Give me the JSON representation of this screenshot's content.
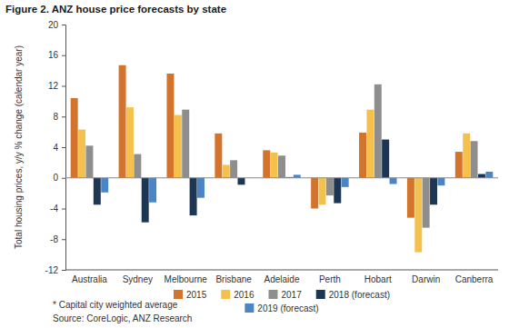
{
  "chart_data": {
    "type": "bar",
    "title": "Figure 2. ANZ house price forecasts by state",
    "y_label": "Total housing prices, y/y % change (calendar year)",
    "categories": [
      "Australia",
      "Sydney",
      "Melbourne",
      "Brisbane",
      "Adelaide",
      "Perth",
      "Hobart",
      "Darwin",
      "Canberra"
    ],
    "series": [
      {
        "name": "2015",
        "color": "#d4732c",
        "values": [
          10.4,
          14.7,
          13.6,
          5.8,
          3.6,
          -4.0,
          5.9,
          -5.2,
          3.4
        ]
      },
      {
        "name": "2016",
        "color": "#f4c14d",
        "values": [
          6.3,
          9.2,
          8.2,
          1.7,
          3.3,
          -3.5,
          8.9,
          -9.7,
          5.8
        ]
      },
      {
        "name": "2017",
        "color": "#8e8e8e",
        "values": [
          4.2,
          3.1,
          8.9,
          2.3,
          2.9,
          -2.3,
          12.2,
          -6.5,
          4.8
        ]
      },
      {
        "name": "2018 (forecast)",
        "color": "#1c3654",
        "values": [
          -3.5,
          -5.8,
          -4.9,
          -0.9,
          0.1,
          -3.3,
          5.0,
          -3.5,
          0.5
        ]
      },
      {
        "name": "2019 (forecast)",
        "color": "#4a86c5",
        "values": [
          -1.9,
          -3.2,
          -2.6,
          0.0,
          0.4,
          -1.2,
          -0.8,
          -1.0,
          0.8
        ]
      }
    ],
    "ylim": [
      -12,
      20
    ],
    "yticks": [
      -12,
      -8,
      -4,
      0,
      4,
      8,
      12,
      16,
      20
    ],
    "grid": false,
    "legend": "bottom",
    "annotations": [
      "* Capital city weighted average",
      "Source: CoreLogic, ANZ Research"
    ]
  }
}
